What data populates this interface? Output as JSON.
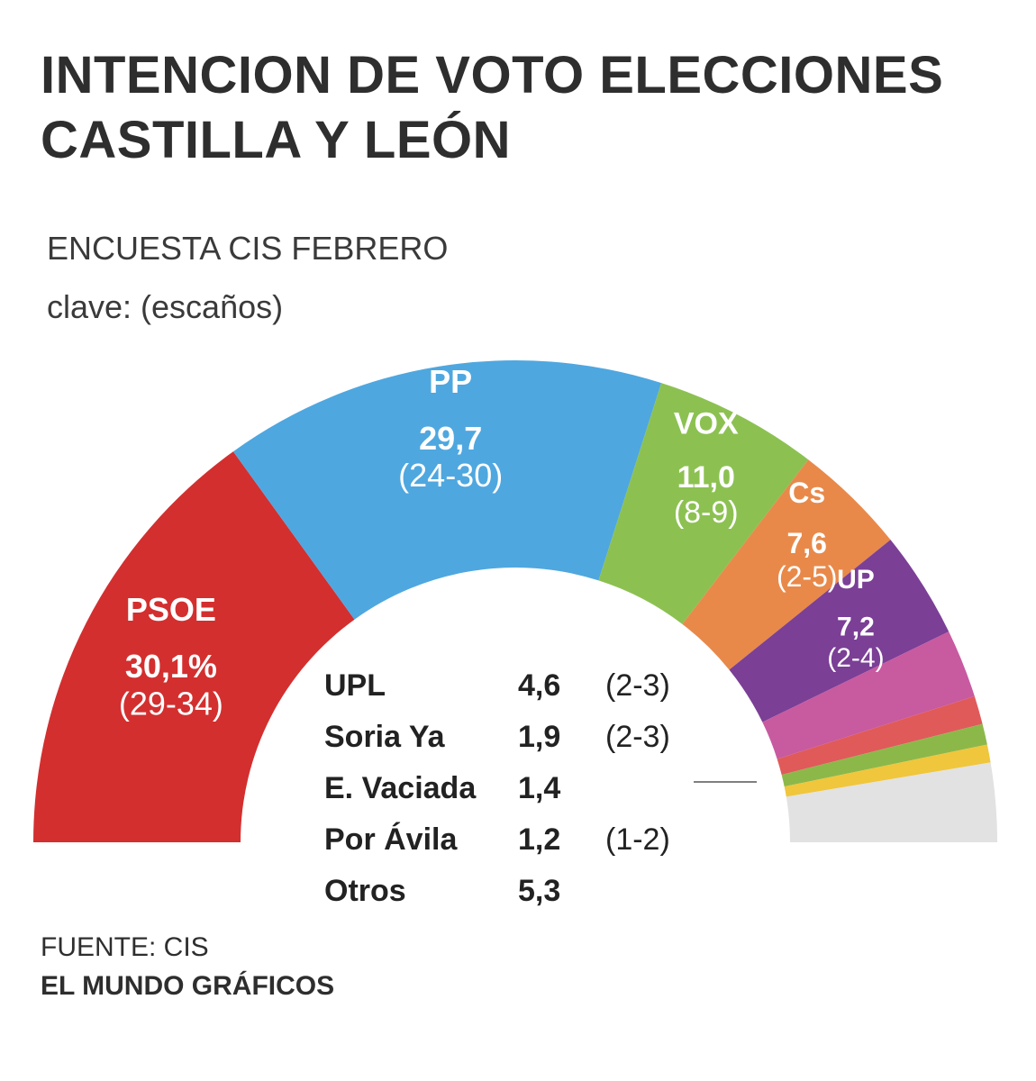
{
  "title_line1": "INTENCION DE VOTO ELECCIONES",
  "title_line2": "CASTILLA Y LEÓN",
  "subtitle": "ENCUESTA CIS FEBRERO",
  "key_note": "clave: (escaños)",
  "source": "FUENTE: CIS",
  "credit": "EL MUNDO GRÁFICOS",
  "chart_data": {
    "type": "pie",
    "layout": "hemicycle",
    "series": [
      {
        "name": "PSOE",
        "value": 30.1,
        "display": "30,1%",
        "seats": "(29-34)",
        "color": "#d32f2f",
        "labeled": true
      },
      {
        "name": "PP",
        "value": 29.7,
        "display": "29,7",
        "seats": "(24-30)",
        "color": "#4fa7df",
        "labeled": true
      },
      {
        "name": "VOX",
        "value": 11.0,
        "display": "11,0",
        "seats": "(8-9)",
        "color": "#8cc152",
        "labeled": true
      },
      {
        "name": "Cs",
        "value": 7.6,
        "display": "7,6",
        "seats": "(2-5)",
        "color": "#e8894a",
        "labeled": true
      },
      {
        "name": "UP",
        "value": 7.2,
        "display": "7,2",
        "seats": "(2-4)",
        "color": "#7b3f96",
        "labeled": true
      },
      {
        "name": "UPL",
        "value": 4.6,
        "display": "4,6",
        "seats": "(2-3)",
        "color": "#c85aa0",
        "labeled": false
      },
      {
        "name": "Soria Ya",
        "value": 1.9,
        "display": "1,9",
        "seats": "(2-3)",
        "color": "#e05a5a",
        "labeled": false
      },
      {
        "name": "E. Vaciada",
        "value": 1.4,
        "display": "1,4",
        "seats": "",
        "color": "#8cb84a",
        "labeled": false
      },
      {
        "name": "Por Ávila",
        "value": 1.2,
        "display": "1,2",
        "seats": "(1-2)",
        "color": "#f0c63c",
        "labeled": false
      },
      {
        "name": "Otros",
        "value": 5.3,
        "display": "5,3",
        "seats": "",
        "color": "#e2e2e2",
        "labeled": false
      }
    ]
  }
}
